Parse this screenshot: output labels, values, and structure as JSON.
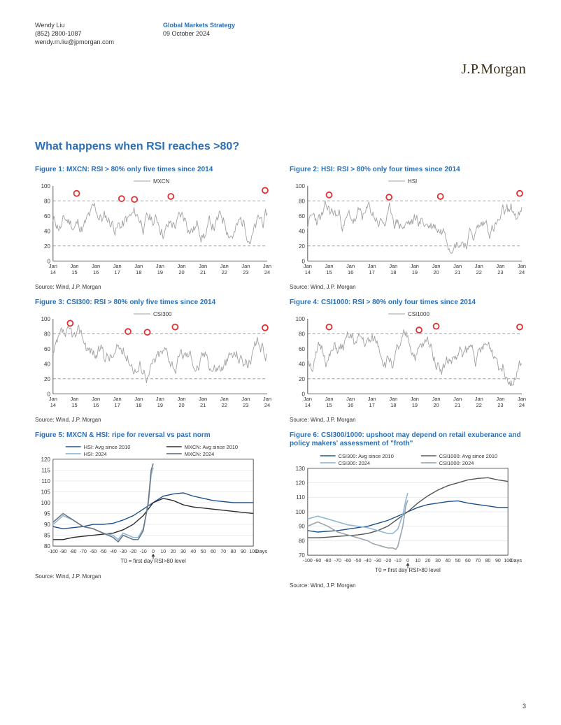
{
  "header": {
    "author": "Wendy Liu",
    "phone": "(852) 2800-1087",
    "email": "wendy.m.liu@jpmorgan.com",
    "group": "Global Markets Strategy",
    "date": "09 October 2024",
    "logo": "J.P.Morgan"
  },
  "section_title": "What happens when RSI reaches >80?",
  "page_number": "3",
  "rsi_charts_common": {
    "type": "line",
    "ylim": [
      0,
      100
    ],
    "ytick_step": 20,
    "x_labels": [
      "Jan 14",
      "Jan 15",
      "Jan 16",
      "Jan 17",
      "Jan 18",
      "Jan 19",
      "Jan 20",
      "Jan 21",
      "Jan 22",
      "Jan 23",
      "Jan 24"
    ],
    "line_color": "#a0a0a0",
    "marker_stroke": "#e03030",
    "marker_fill": "#ffffff",
    "grid_dashed_levels": [
      20,
      80
    ],
    "grid_color": "#9aa0a6",
    "axis_color": "#333333",
    "tick_fontsize": 8,
    "source": "Source: Wind, J.P. Morgan"
  },
  "figures": {
    "f1": {
      "title": "Figure 1: MXCN: RSI > 80% only five times since 2014",
      "legend": "MXCN",
      "markers_x": [
        0.11,
        0.32,
        0.38,
        0.55,
        0.99
      ],
      "markers_y": [
        90,
        83,
        82,
        86,
        94
      ]
    },
    "f2": {
      "title": "Figure 2: HSI: RSI > 80% only four times since 2014",
      "legend": "HSI",
      "markers_x": [
        0.1,
        0.38,
        0.62,
        0.99
      ],
      "markers_y": [
        88,
        85,
        86,
        90
      ]
    },
    "f3": {
      "title": "Figure 3: CSI300: RSI > 80% only five times since 2014",
      "legend": "CSI300",
      "markers_x": [
        0.08,
        0.35,
        0.44,
        0.57,
        0.99
      ],
      "markers_y": [
        94,
        83,
        82,
        89,
        88
      ]
    },
    "f4": {
      "title": "Figure 4: CSI1000: RSI > 80% only four times since 2014",
      "legend": "CSI1000",
      "markers_x": [
        0.1,
        0.52,
        0.6,
        0.99
      ],
      "markers_y": [
        89,
        85,
        90,
        89
      ]
    },
    "f5": {
      "title": "Figure 5: MXCN & HSI: ripe for reversal vs past norm",
      "type": "line",
      "ylim": [
        80,
        120
      ],
      "ytick_step": 5,
      "xlim": [
        -100,
        100
      ],
      "xtick_step": 10,
      "x_axis_label": "Days",
      "annotation": "T0 = first day RSI>80 level",
      "source": "Source: Wind, J.P. Morgan",
      "series": [
        {
          "name": "HSI: Avg since 2010",
          "color": "#1b4f8a",
          "width": 1.4,
          "points": [
            [
              -100,
              89
            ],
            [
              -90,
              88
            ],
            [
              -80,
              88.5
            ],
            [
              -70,
              89
            ],
            [
              -60,
              90
            ],
            [
              -50,
              90
            ],
            [
              -40,
              90.5
            ],
            [
              -30,
              92
            ],
            [
              -20,
              94
            ],
            [
              -10,
              97
            ],
            [
              0,
              100
            ],
            [
              10,
              103
            ],
            [
              20,
              104
            ],
            [
              30,
              104.5
            ],
            [
              40,
              103
            ],
            [
              50,
              102
            ],
            [
              60,
              101
            ],
            [
              70,
              100.5
            ],
            [
              80,
              100
            ],
            [
              90,
              100
            ],
            [
              100,
              100
            ]
          ]
        },
        {
          "name": "MXCN: Avg since 2010",
          "color": "#2a2a2a",
          "width": 1.4,
          "points": [
            [
              -100,
              83
            ],
            [
              -90,
              83
            ],
            [
              -80,
              84
            ],
            [
              -70,
              84.5
            ],
            [
              -60,
              85
            ],
            [
              -50,
              85.5
            ],
            [
              -40,
              86
            ],
            [
              -30,
              87.5
            ],
            [
              -20,
              90
            ],
            [
              -10,
              94
            ],
            [
              0,
              100
            ],
            [
              10,
              102
            ],
            [
              20,
              101
            ],
            [
              30,
              99
            ],
            [
              40,
              98
            ],
            [
              50,
              97.5
            ],
            [
              60,
              97
            ],
            [
              70,
              96.5
            ],
            [
              80,
              96
            ],
            [
              90,
              95.5
            ],
            [
              100,
              95
            ]
          ]
        },
        {
          "name": "HSI: 2024",
          "color": "#8fb7d6",
          "width": 1.6,
          "points": [
            [
              -100,
              90
            ],
            [
              -90,
              94
            ],
            [
              -80,
              92
            ],
            [
              -70,
              89
            ],
            [
              -60,
              88
            ],
            [
              -50,
              86
            ],
            [
              -40,
              85
            ],
            [
              -35,
              83
            ],
            [
              -30,
              86
            ],
            [
              -25,
              85
            ],
            [
              -20,
              84
            ],
            [
              -15,
              84
            ],
            [
              -10,
              88
            ],
            [
              -5,
              99
            ],
            [
              -2,
              113
            ],
            [
              0,
              116
            ]
          ]
        },
        {
          "name": "MXCN: 2024",
          "color": "#6b7680",
          "width": 1.6,
          "points": [
            [
              -100,
              91
            ],
            [
              -90,
              95
            ],
            [
              -80,
              92
            ],
            [
              -70,
              89
            ],
            [
              -60,
              88
            ],
            [
              -50,
              86
            ],
            [
              -40,
              84
            ],
            [
              -35,
              82
            ],
            [
              -30,
              85
            ],
            [
              -25,
              84
            ],
            [
              -20,
              83
            ],
            [
              -15,
              83
            ],
            [
              -10,
              87
            ],
            [
              -5,
              100
            ],
            [
              -2,
              115
            ],
            [
              0,
              118
            ]
          ]
        }
      ]
    },
    "f6": {
      "title": "Figure 6: CSI300/1000: upshoot may depend on retail exuberance and policy makers' assessment of \"froth\"",
      "type": "line",
      "ylim": [
        70,
        130
      ],
      "ytick_step": 10,
      "xlim": [
        -100,
        100
      ],
      "xtick_step": 10,
      "x_axis_label": "Days",
      "annotation": "T0 = first day RSI>80 level",
      "source": "Source: Wind, J.P. Morgan",
      "series": [
        {
          "name": "CSI300: Avg since 2010",
          "color": "#1b4f8a",
          "width": 1.4,
          "points": [
            [
              -100,
              87
            ],
            [
              -90,
              86
            ],
            [
              -80,
              86.5
            ],
            [
              -70,
              87
            ],
            [
              -60,
              88
            ],
            [
              -50,
              89
            ],
            [
              -40,
              90
            ],
            [
              -30,
              92
            ],
            [
              -20,
              94
            ],
            [
              -10,
              97
            ],
            [
              0,
              100
            ],
            [
              10,
              103
            ],
            [
              20,
              105
            ],
            [
              30,
              106
            ],
            [
              40,
              107
            ],
            [
              50,
              107.5
            ],
            [
              60,
              106
            ],
            [
              70,
              105
            ],
            [
              80,
              104
            ],
            [
              90,
              103
            ],
            [
              100,
              103
            ]
          ]
        },
        {
          "name": "CSI1000: Avg since 2010",
          "color": "#555555",
          "width": 1.4,
          "points": [
            [
              -100,
              82
            ],
            [
              -90,
              82
            ],
            [
              -80,
              82.5
            ],
            [
              -70,
              83
            ],
            [
              -60,
              83.5
            ],
            [
              -50,
              84
            ],
            [
              -40,
              85
            ],
            [
              -30,
              87
            ],
            [
              -20,
              90
            ],
            [
              -10,
              95
            ],
            [
              0,
              100
            ],
            [
              10,
              106
            ],
            [
              20,
              111
            ],
            [
              30,
              115
            ],
            [
              40,
              118
            ],
            [
              50,
              120
            ],
            [
              60,
              122
            ],
            [
              70,
              123
            ],
            [
              80,
              123.5
            ],
            [
              90,
              122
            ],
            [
              100,
              121
            ]
          ]
        },
        {
          "name": "CSI300: 2024",
          "color": "#8fb7d6",
          "width": 1.6,
          "points": [
            [
              -100,
              95
            ],
            [
              -90,
              97
            ],
            [
              -80,
              95
            ],
            [
              -70,
              93
            ],
            [
              -60,
              91
            ],
            [
              -50,
              90
            ],
            [
              -40,
              89
            ],
            [
              -35,
              88
            ],
            [
              -30,
              87
            ],
            [
              -25,
              86
            ],
            [
              -20,
              85
            ],
            [
              -15,
              85
            ],
            [
              -10,
              88
            ],
            [
              -5,
              98
            ],
            [
              -2,
              108
            ],
            [
              0,
              113
            ]
          ]
        },
        {
          "name": "CSI1000: 2024",
          "color": "#9aa5ae",
          "width": 1.6,
          "points": [
            [
              -100,
              90
            ],
            [
              -90,
              93
            ],
            [
              -80,
              90
            ],
            [
              -70,
              86
            ],
            [
              -60,
              84
            ],
            [
              -50,
              82
            ],
            [
              -40,
              80
            ],
            [
              -35,
              78
            ],
            [
              -30,
              77
            ],
            [
              -25,
              76
            ],
            [
              -20,
              75
            ],
            [
              -15,
              75
            ],
            [
              -12,
              74
            ],
            [
              -10,
              76
            ],
            [
              -5,
              90
            ],
            [
              -2,
              104
            ],
            [
              0,
              108
            ]
          ]
        }
      ]
    }
  }
}
